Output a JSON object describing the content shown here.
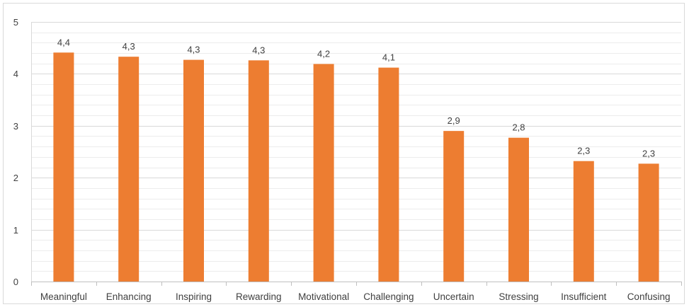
{
  "chart_data": {
    "type": "bar",
    "title": "",
    "xlabel": "",
    "ylabel": "",
    "categories": [
      "Meaningful",
      "Enhancing",
      "Inspiring",
      "Rewarding",
      "Motivational",
      "Challenging",
      "Uncertain",
      "Stressing",
      "Insufficient",
      "Confusing"
    ],
    "values": [
      4.41,
      4.33,
      4.27,
      4.26,
      4.19,
      4.12,
      2.9,
      2.77,
      2.32,
      2.27
    ],
    "data_labels": [
      "4,4",
      "4,3",
      "4,3",
      "4,3",
      "4,2",
      "4,1",
      "2,9",
      "2,8",
      "2,3",
      "2,3"
    ],
    "ylim": [
      0,
      5
    ],
    "yticks": [
      0,
      1,
      2,
      3,
      4,
      5
    ],
    "ytick_labels": [
      "0",
      "1",
      "2",
      "3",
      "4",
      "5"
    ],
    "grid": true,
    "minor_grid": true,
    "legend": "none",
    "colors": {
      "bar": "#ed7d31",
      "major_grid": "#d9d9d9",
      "minor_grid": "#ececec",
      "axis": "#bfbfbf",
      "text": "#404040"
    }
  }
}
